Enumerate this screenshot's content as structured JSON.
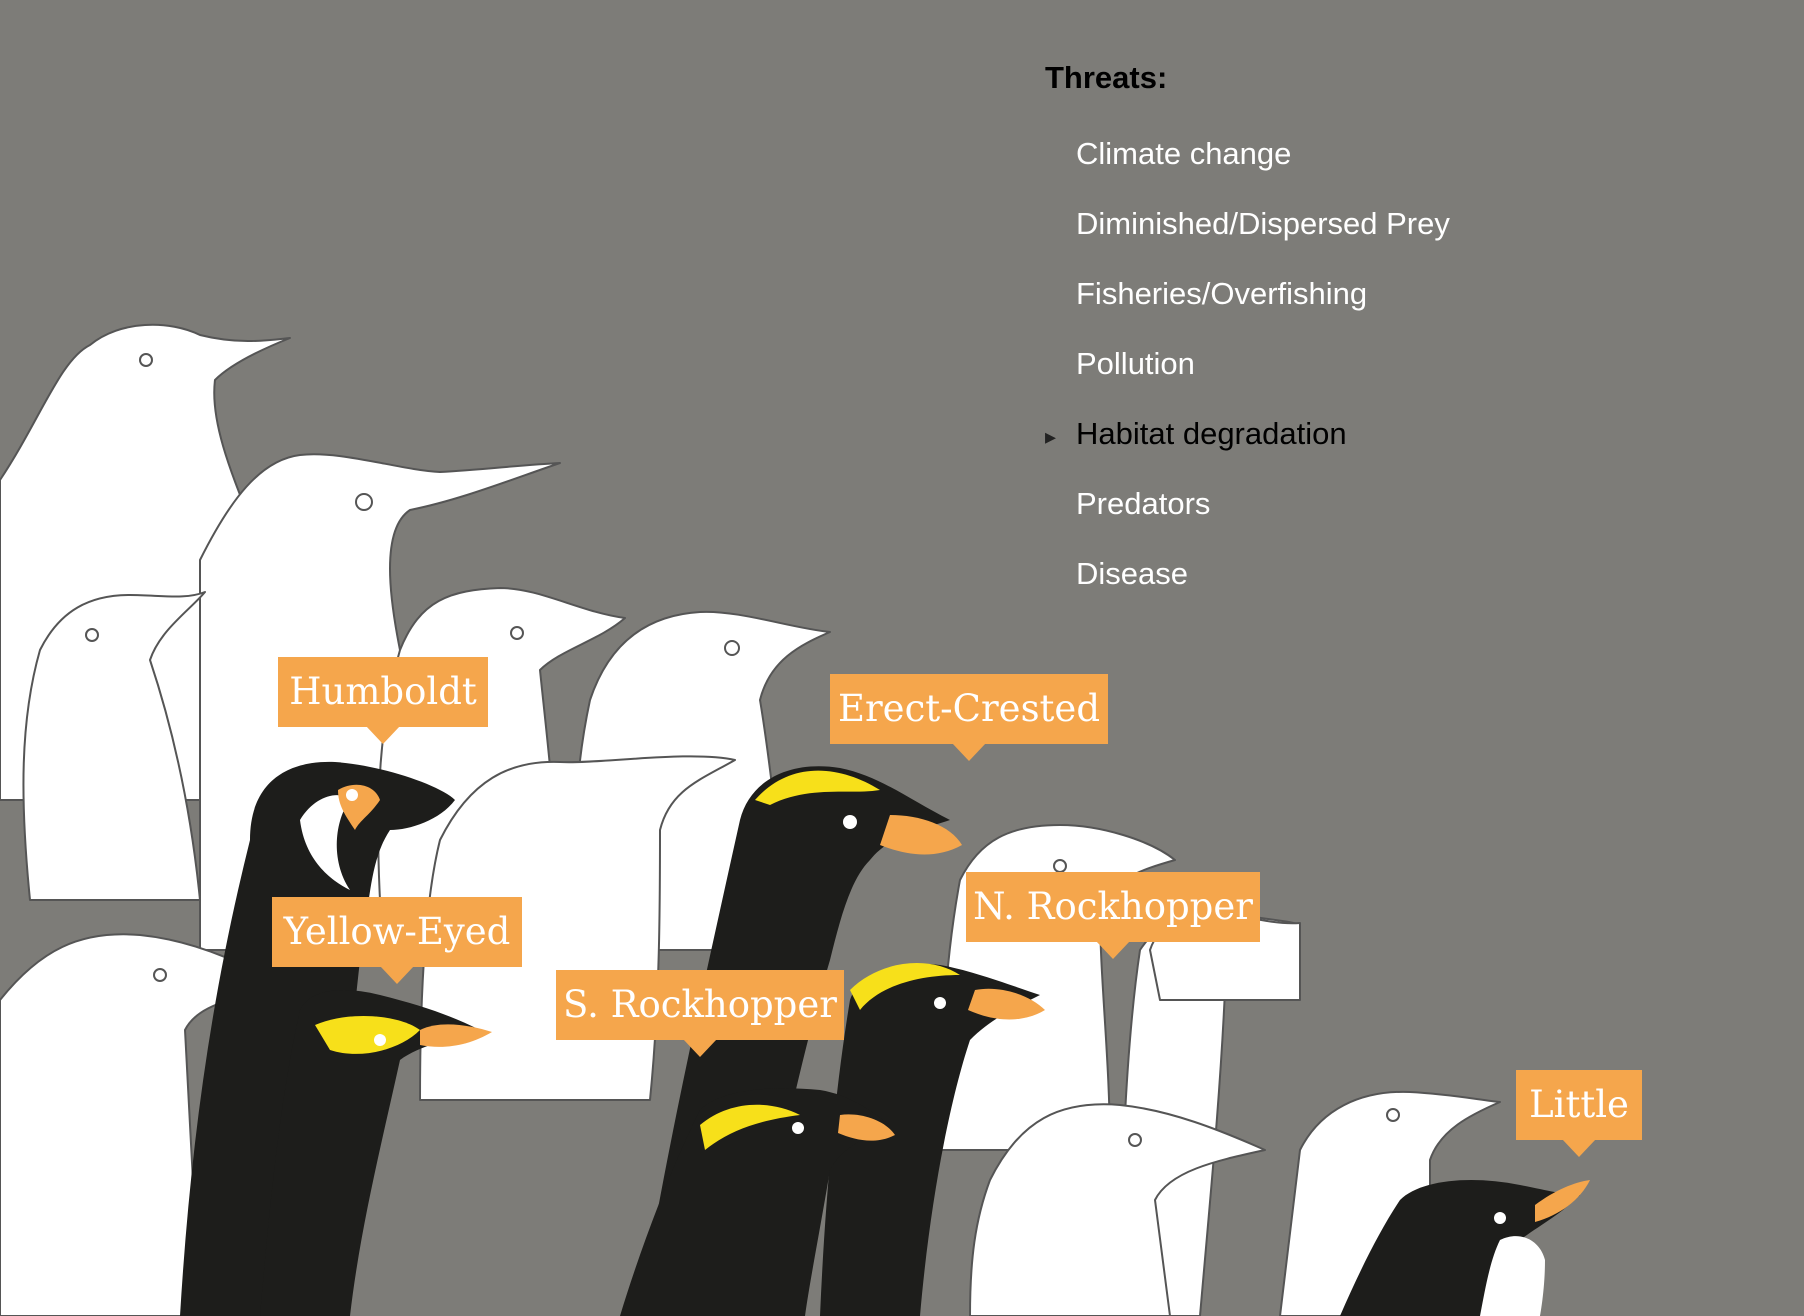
{
  "threats": {
    "title": "Threats:",
    "items": [
      {
        "label": "Climate change",
        "active": false
      },
      {
        "label": "Diminished/Dispersed Prey",
        "active": false
      },
      {
        "label": "Fisheries/Overfishing",
        "active": false
      },
      {
        "label": "Pollution",
        "active": false
      },
      {
        "label": "Habitat degradation",
        "active": true
      },
      {
        "label": "Predators",
        "active": false
      },
      {
        "label": "Disease",
        "active": false
      }
    ]
  },
  "penguin_labels": {
    "humboldt": "Humboldt",
    "yellow_eyed": "Yellow-Eyed",
    "erect_crested": "Erect-Crested",
    "n_rockhopper": "N. Rockhopper",
    "s_rockhopper": "S. Rockhopper",
    "little": "Little"
  },
  "colors": {
    "background": "#7d7c78",
    "tag": "#f5a64c",
    "crest_yellow": "#f7e01a",
    "penguin_black": "#1d1d1b",
    "outline_fill": "#ffffff"
  }
}
